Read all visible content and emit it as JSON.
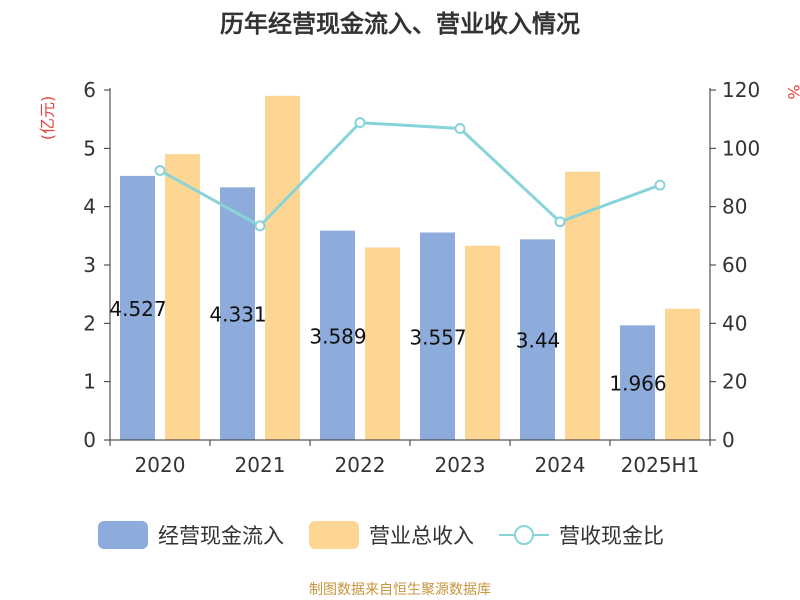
{
  "chart_data": {
    "type": "bar",
    "title": "历年经营现金流入、营业收入情况",
    "categories": [
      "2020",
      "2021",
      "2022",
      "2023",
      "2024",
      "2025H1"
    ],
    "series": [
      {
        "name": "经营现金流入",
        "kind": "bar",
        "axis": "left",
        "color": "#8eacdb",
        "values": [
          4.527,
          4.331,
          3.589,
          3.557,
          3.44,
          1.966
        ],
        "labels": [
          "4.527",
          "4.331",
          "3.589",
          "3.557",
          "3.44",
          "1.966"
        ]
      },
      {
        "name": "营业总收入",
        "kind": "bar",
        "axis": "left",
        "color": "#fdd694",
        "values": [
          4.9,
          5.9,
          3.3,
          3.33,
          4.6,
          2.25
        ]
      },
      {
        "name": "营收现金比",
        "kind": "line",
        "axis": "right",
        "color": "#88d4d8",
        "values": [
          92.4,
          73.4,
          108.8,
          106.8,
          74.8,
          87.4
        ]
      }
    ],
    "ylabel": "(亿元)",
    "y2label": "%",
    "ylim": [
      0,
      6
    ],
    "yticks": [
      "0",
      "1",
      "2",
      "3",
      "4",
      "5",
      "6"
    ],
    "y2lim": [
      0,
      120
    ],
    "y2ticks": [
      "0",
      "20",
      "40",
      "60",
      "80",
      "100",
      "120"
    ],
    "grid": false,
    "legend_position": "bottom"
  },
  "footer": {
    "source": "制图数据来自恒生聚源数据库"
  }
}
